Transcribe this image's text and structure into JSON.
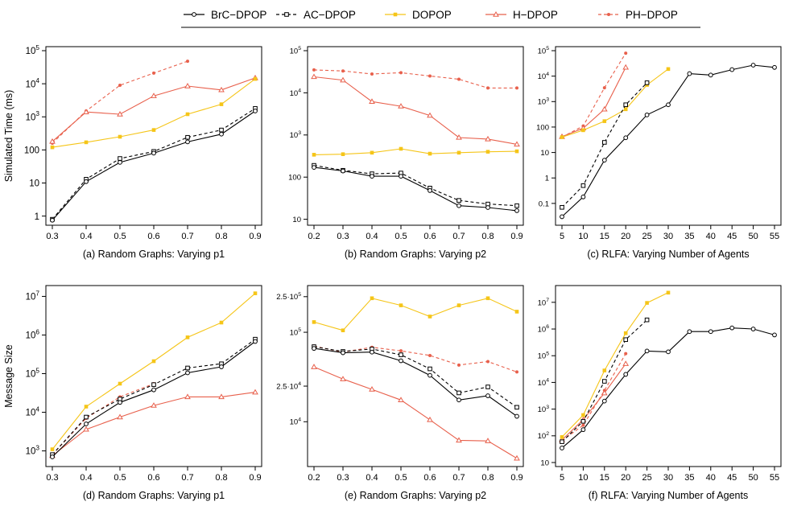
{
  "legend": {
    "items": [
      {
        "label": "BrC−DPOP",
        "color": "#000000",
        "dash": "solid",
        "marker": "circle"
      },
      {
        "label": "AC−DPOP",
        "color": "#000000",
        "dash": "dashed",
        "marker": "square"
      },
      {
        "label": "DOPOP",
        "color": "#F5C518",
        "dash": "solid",
        "marker": "square-filled"
      },
      {
        "label": "H−DPOP",
        "color": "#E8604C",
        "dash": "solid",
        "marker": "triangle"
      },
      {
        "label": "PH−DPOP",
        "color": "#E8604C",
        "dash": "dashed",
        "marker": "dot"
      }
    ]
  },
  "chart_data": [
    {
      "type": "line",
      "title": "(a) Random Graphs: Varying p1",
      "xlabel": "(a) Random Graphs: Varying p1",
      "ylabel": "Simulated Time (ms)",
      "yscale": "log",
      "ylim": [
        0.7,
        100000
      ],
      "xlim": [
        0.3,
        0.9
      ],
      "xticks": [
        0.3,
        0.4,
        0.5,
        0.6,
        0.7,
        0.8,
        0.9
      ],
      "xtick_labels": [
        "0.3",
        "0.4",
        "0.5",
        "0.6",
        "0.7",
        "0.8",
        "0.9"
      ],
      "yticks": [
        {
          "v": 1,
          "base": "1"
        },
        {
          "v": 10,
          "base": "10"
        },
        {
          "v": 100,
          "base": "100"
        },
        {
          "v": 1000,
          "base": "10",
          "exp": "3"
        },
        {
          "v": 10000,
          "base": "10",
          "exp": "4"
        },
        {
          "v": 100000,
          "base": "10",
          "exp": "5"
        }
      ],
      "series": [
        {
          "name": "BrC−DPOP",
          "x": [
            0.3,
            0.4,
            0.5,
            0.6,
            0.7,
            0.8,
            0.9
          ],
          "values": [
            0.75,
            11,
            42,
            80,
            175,
            300,
            1500
          ]
        },
        {
          "name": "AC−DPOP",
          "x": [
            0.3,
            0.4,
            0.5,
            0.6,
            0.7,
            0.8,
            0.9
          ],
          "values": [
            0.8,
            13,
            55,
            90,
            240,
            400,
            1800
          ]
        },
        {
          "name": "DOPOP",
          "x": [
            0.3,
            0.4,
            0.5,
            0.6,
            0.7,
            0.8,
            0.9
          ],
          "values": [
            120,
            170,
            250,
            400,
            1200,
            2400,
            14000
          ]
        },
        {
          "name": "H−DPOP",
          "x": [
            0.3,
            0.4,
            0.5,
            0.6,
            0.7,
            0.8,
            0.9
          ],
          "values": [
            180,
            1400,
            1200,
            4300,
            8500,
            6500,
            15000
          ]
        },
        {
          "name": "PH−DPOP",
          "x": [
            0.3,
            0.4,
            0.5,
            0.6,
            0.7
          ],
          "values": [
            160,
            1500,
            9000,
            21000,
            48000
          ]
        }
      ]
    },
    {
      "type": "line",
      "title": "(b) Random Graphs: Varying p2",
      "xlabel": "(b) Random Graphs: Varying p2",
      "ylabel": "",
      "yscale": "log",
      "ylim": [
        9,
        100000
      ],
      "xlim": [
        0.2,
        0.9
      ],
      "xticks": [
        0.2,
        0.3,
        0.4,
        0.5,
        0.6,
        0.7,
        0.8,
        0.9
      ],
      "xtick_labels": [
        "0.2",
        "0.3",
        "0.4",
        "0.5",
        "0.6",
        "0.7",
        "0.8",
        "0.9"
      ],
      "yticks": [
        {
          "v": 10,
          "base": "10"
        },
        {
          "v": 100,
          "base": "100"
        },
        {
          "v": 1000,
          "base": "10",
          "exp": "3"
        },
        {
          "v": 10000,
          "base": "10",
          "exp": "4"
        },
        {
          "v": 100000,
          "base": "10",
          "exp": "5"
        }
      ],
      "series": [
        {
          "name": "BrC−DPOP",
          "x": [
            0.2,
            0.3,
            0.4,
            0.5,
            0.6,
            0.7,
            0.8,
            0.9
          ],
          "values": [
            170,
            140,
            105,
            105,
            48,
            21,
            19,
            16
          ]
        },
        {
          "name": "AC−DPOP",
          "x": [
            0.2,
            0.3,
            0.4,
            0.5,
            0.6,
            0.7,
            0.8,
            0.9
          ],
          "values": [
            190,
            145,
            120,
            125,
            55,
            28,
            23,
            21
          ]
        },
        {
          "name": "DOPOP",
          "x": [
            0.2,
            0.3,
            0.4,
            0.5,
            0.6,
            0.7,
            0.8,
            0.9
          ],
          "values": [
            340,
            350,
            380,
            470,
            360,
            380,
            400,
            410
          ]
        },
        {
          "name": "H−DPOP",
          "x": [
            0.2,
            0.3,
            0.4,
            0.5,
            0.6,
            0.7,
            0.8,
            0.9
          ],
          "values": [
            24000,
            20000,
            6200,
            4800,
            2900,
            870,
            800,
            600
          ]
        },
        {
          "name": "PH−DPOP",
          "x": [
            0.2,
            0.3,
            0.4,
            0.5,
            0.6,
            0.7,
            0.8,
            0.9
          ],
          "values": [
            35000,
            33000,
            28000,
            30000,
            25000,
            21000,
            13000,
            13000
          ]
        }
      ]
    },
    {
      "type": "line",
      "title": "(c) RLFA: Varying Number of Agents",
      "xlabel": "(c) RLFA: Varying Number of Agents",
      "ylabel": "",
      "yscale": "log",
      "ylim": [
        0.02,
        100000
      ],
      "xlim": [
        5,
        55
      ],
      "xticks": [
        5,
        10,
        15,
        20,
        25,
        30,
        35,
        40,
        45,
        50,
        55
      ],
      "xtick_labels": [
        "5",
        "10",
        "15",
        "20",
        "25",
        "30",
        "35",
        "40",
        "45",
        "50",
        "55"
      ],
      "yticks": [
        {
          "v": 0.1,
          "base": "0.1"
        },
        {
          "v": 1,
          "base": "1"
        },
        {
          "v": 10,
          "base": "10"
        },
        {
          "v": 100,
          "base": "100"
        },
        {
          "v": 1000,
          "base": "10",
          "exp": "3"
        },
        {
          "v": 10000,
          "base": "10",
          "exp": "4"
        },
        {
          "v": 100000,
          "base": "10",
          "exp": "5"
        }
      ],
      "series": [
        {
          "name": "BrC−DPOP",
          "x": [
            5,
            10,
            15,
            20,
            25,
            30,
            35,
            40,
            45,
            50,
            55
          ],
          "values": [
            0.03,
            0.18,
            5,
            38,
            300,
            750,
            12500,
            11000,
            18000,
            27000,
            22000
          ]
        },
        {
          "name": "AC−DPOP",
          "x": [
            5,
            10,
            15,
            20,
            25
          ],
          "values": [
            0.07,
            0.5,
            25,
            750,
            5500
          ]
        },
        {
          "name": "DOPOP",
          "x": [
            5,
            10,
            15,
            20,
            25,
            30
          ],
          "values": [
            40,
            75,
            170,
            500,
            4500,
            19000
          ]
        },
        {
          "name": "H−DPOP",
          "x": [
            5,
            10,
            15,
            20
          ],
          "values": [
            42,
            90,
            500,
            22000
          ]
        },
        {
          "name": "PH−DPOP",
          "x": [
            5,
            10,
            15,
            20
          ],
          "values": [
            40,
            110,
            3500,
            80000
          ]
        }
      ]
    },
    {
      "type": "line",
      "title": "(d) Random Graphs: Varying p1",
      "xlabel": "(d) Random Graphs: Varying p1",
      "ylabel": "Message Size",
      "yscale": "log",
      "ylim": [
        500,
        15000000
      ],
      "xlim": [
        0.3,
        0.9
      ],
      "xticks": [
        0.3,
        0.4,
        0.5,
        0.6,
        0.7,
        0.8,
        0.9
      ],
      "xtick_labels": [
        "0.3",
        "0.4",
        "0.5",
        "0.6",
        "0.7",
        "0.8",
        "0.9"
      ],
      "yticks": [
        {
          "v": 1000,
          "base": "10",
          "exp": "3"
        },
        {
          "v": 10000,
          "base": "10",
          "exp": "4"
        },
        {
          "v": 100000,
          "base": "10",
          "exp": "5"
        },
        {
          "v": 1000000,
          "base": "10",
          "exp": "6"
        },
        {
          "v": 10000000,
          "base": "10",
          "exp": "7"
        }
      ],
      "series": [
        {
          "name": "BrC−DPOP",
          "x": [
            0.3,
            0.4,
            0.5,
            0.6,
            0.7,
            0.8,
            0.9
          ],
          "values": [
            700,
            5000,
            18000,
            38000,
            105000,
            150000,
            680000
          ]
        },
        {
          "name": "AC−DPOP",
          "x": [
            0.3,
            0.4,
            0.5,
            0.6,
            0.7,
            0.8,
            0.9
          ],
          "values": [
            800,
            7500,
            22000,
            52000,
            140000,
            180000,
            780000
          ]
        },
        {
          "name": "DOPOP",
          "x": [
            0.3,
            0.4,
            0.5,
            0.6,
            0.7,
            0.8,
            0.9
          ],
          "values": [
            1100,
            14000,
            55000,
            210000,
            870000,
            2100000,
            12000000
          ]
        },
        {
          "name": "H−DPOP",
          "x": [
            0.3,
            0.4,
            0.5,
            0.6,
            0.7,
            0.8,
            0.9
          ],
          "values": [
            750,
            3600,
            7500,
            15000,
            25000,
            25000,
            33000
          ]
        },
        {
          "name": "PH−DPOP",
          "x": [
            0.3,
            0.4,
            0.5,
            0.6
          ],
          "values": [
            800,
            7000,
            25000,
            55000
          ]
        }
      ]
    },
    {
      "type": "line",
      "title": "(e) Random Graphs: Varying p2",
      "xlabel": "(e) Random Graphs: Varying p2",
      "ylabel": "",
      "yscale": "log",
      "ylim": [
        3500,
        300000
      ],
      "xlim": [
        0.2,
        0.9
      ],
      "xticks": [
        0.2,
        0.3,
        0.4,
        0.5,
        0.6,
        0.7,
        0.8,
        0.9
      ],
      "xtick_labels": [
        "0.2",
        "0.3",
        "0.4",
        "0.5",
        "0.6",
        "0.7",
        "0.8",
        "0.9"
      ],
      "yticks": [
        {
          "v": 10000,
          "base": "10",
          "exp": "4"
        },
        {
          "v": 25000,
          "base": "2.5·10",
          "exp": "4"
        },
        {
          "v": 100000,
          "base": "10",
          "exp": "5"
        },
        {
          "v": 250000,
          "base": "2.5·10",
          "exp": "5"
        }
      ],
      "series": [
        {
          "name": "BrC−DPOP",
          "x": [
            0.2,
            0.3,
            0.4,
            0.5,
            0.6,
            0.7,
            0.8,
            0.9
          ],
          "values": [
            66000,
            59000,
            60000,
            48000,
            33000,
            17500,
            19500,
            11500
          ]
        },
        {
          "name": "AC−DPOP",
          "x": [
            0.2,
            0.3,
            0.4,
            0.5,
            0.6,
            0.7,
            0.8,
            0.9
          ],
          "values": [
            69000,
            61000,
            65000,
            56000,
            39000,
            21000,
            24500,
            14500
          ]
        },
        {
          "name": "DOPOP",
          "x": [
            0.2,
            0.3,
            0.4,
            0.5,
            0.6,
            0.7,
            0.8,
            0.9
          ],
          "values": [
            130000,
            105000,
            240000,
            200000,
            150000,
            200000,
            240000,
            170000
          ]
        },
        {
          "name": "H−DPOP",
          "x": [
            0.2,
            0.3,
            0.4,
            0.5,
            0.6,
            0.7,
            0.8,
            0.9
          ],
          "values": [
            41000,
            30000,
            23000,
            17500,
            10500,
            6200,
            6100,
            3900
          ]
        },
        {
          "name": "PH−DPOP",
          "x": [
            0.2,
            0.3,
            0.4,
            0.5,
            0.6,
            0.7,
            0.8,
            0.9
          ],
          "values": [
            70000,
            60000,
            68000,
            62000,
            55000,
            43000,
            47000,
            36000
          ]
        }
      ]
    },
    {
      "type": "line",
      "title": "(f) RLFA: Varying Number of Agents",
      "xlabel": "(f) RLFA: Varying Number of Agents",
      "ylabel": "",
      "yscale": "log",
      "ylim": [
        10,
        30000000
      ],
      "xlim": [
        5,
        55
      ],
      "xticks": [
        5,
        10,
        15,
        20,
        25,
        30,
        35,
        40,
        45,
        50,
        55
      ],
      "xtick_labels": [
        "5",
        "10",
        "15",
        "20",
        "25",
        "30",
        "35",
        "40",
        "45",
        "50",
        "55"
      ],
      "yticks": [
        {
          "v": 10,
          "base": "10"
        },
        {
          "v": 100,
          "base": "10",
          "exp": "2"
        },
        {
          "v": 1000,
          "base": "10",
          "exp": "3"
        },
        {
          "v": 10000,
          "base": "10",
          "exp": "4"
        },
        {
          "v": 100000,
          "base": "10",
          "exp": "5"
        },
        {
          "v": 1000000,
          "base": "10",
          "exp": "6"
        },
        {
          "v": 10000000,
          "base": "10",
          "exp": "7"
        }
      ],
      "series": [
        {
          "name": "BrC−DPOP",
          "x": [
            5,
            10,
            15,
            20,
            25,
            30,
            35,
            40,
            45,
            50,
            55
          ],
          "values": [
            35,
            170,
            2000,
            20000,
            150000,
            140000,
            800000,
            800000,
            1100000,
            1000000,
            600000
          ]
        },
        {
          "name": "AC−DPOP",
          "x": [
            5,
            10,
            15,
            20,
            25
          ],
          "values": [
            60,
            350,
            11000,
            400000,
            2200000
          ]
        },
        {
          "name": "DOPOP",
          "x": [
            5,
            10,
            15,
            20,
            25,
            30
          ],
          "values": [
            90,
            600,
            28000,
            700000,
            9500000,
            23000000
          ]
        },
        {
          "name": "H−DPOP",
          "x": [
            5,
            10,
            15,
            20
          ],
          "values": [
            70,
            400,
            4000,
            50000
          ]
        },
        {
          "name": "PH−DPOP",
          "x": [
            5,
            10,
            15,
            20
          ],
          "values": [
            65,
            250,
            5000,
            120000
          ]
        }
      ]
    }
  ]
}
